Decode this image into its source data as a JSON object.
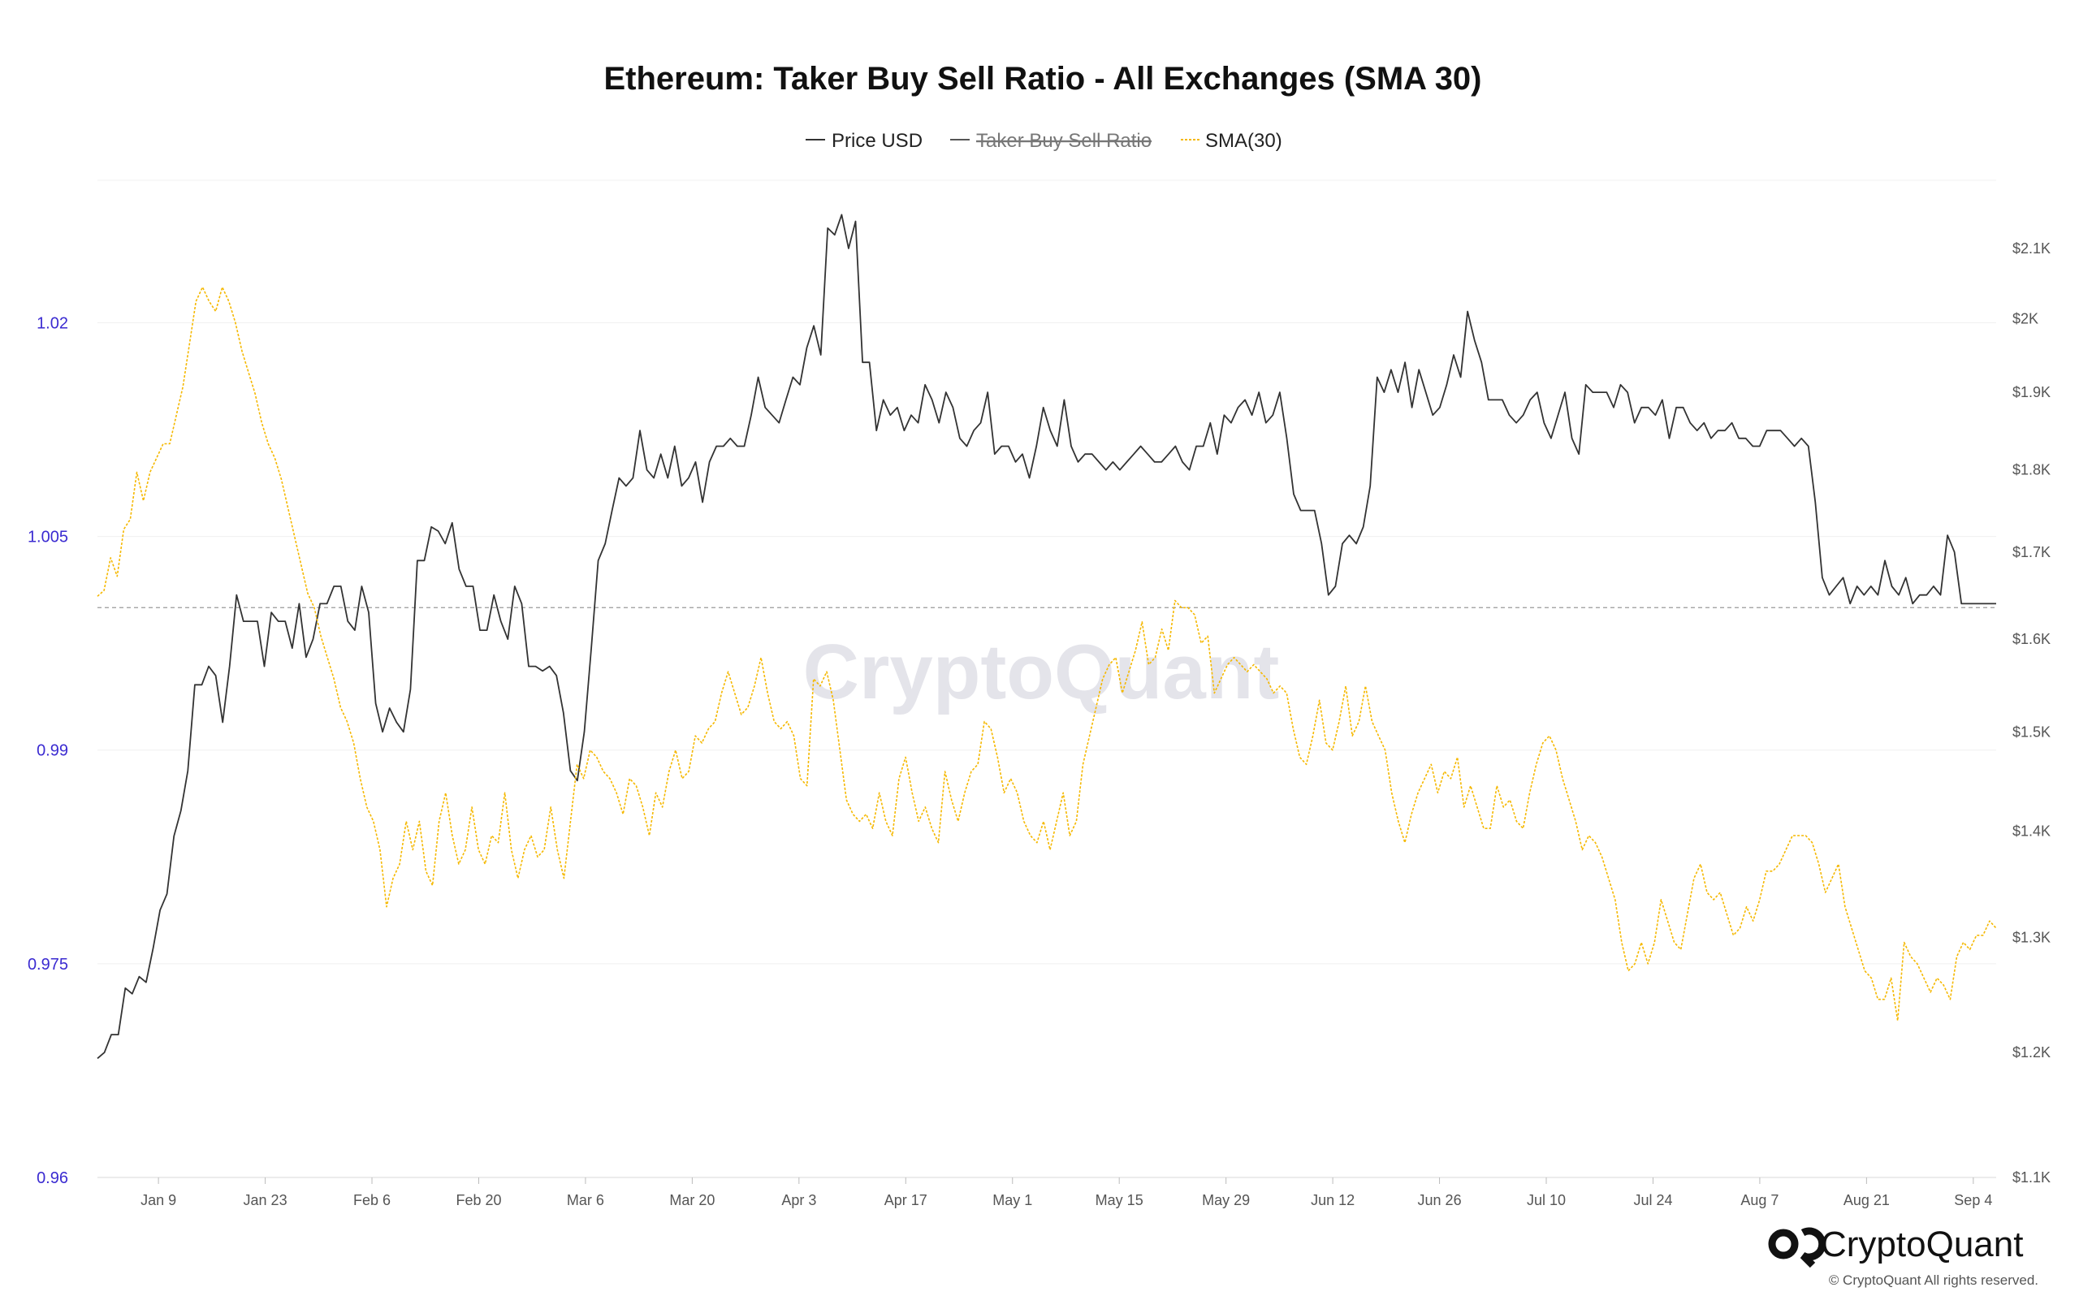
{
  "chart_data": {
    "type": "line",
    "title": "Ethereum: Taker Buy Sell Ratio - All Exchanges (SMA 30)",
    "legend": {
      "placement": "top-center",
      "items": [
        {
          "label": "Price USD",
          "color": "#333333",
          "style": "solid",
          "struck": false
        },
        {
          "label": "Taker Buy Sell Ratio",
          "color": "#555555",
          "style": "solid",
          "struck": true
        },
        {
          "label": "SMA(30)",
          "color": "#f5b800",
          "style": "dashed",
          "struck": false
        }
      ]
    },
    "x_ticks": [
      "Jan 9",
      "Jan 23",
      "Feb 6",
      "Feb 20",
      "Mar 6",
      "Mar 20",
      "Apr 3",
      "Apr 17",
      "May 1",
      "May 15",
      "May 29",
      "Jun 12",
      "Jun 26",
      "Jul 10",
      "Jul 24",
      "Aug 7",
      "Aug 21",
      "Sep 4"
    ],
    "y_left": {
      "scale": "linear",
      "ylim": [
        0.96,
        1.03
      ],
      "tick_values": [
        0.96,
        0.975,
        0.99,
        1.005,
        1.02
      ],
      "tick_labels": [
        "0.96",
        "0.975",
        "0.99",
        "1.005",
        "1.02"
      ],
      "reference_line": 1.0
    },
    "y_right": {
      "scale": "log",
      "tick_values": [
        1100,
        1200,
        1300,
        1400,
        1500,
        1600,
        1700,
        1800,
        1900,
        2000,
        2100
      ],
      "tick_labels": [
        "$1.1K",
        "$1.2K",
        "$1.3K",
        "$1.4K",
        "$1.5K",
        "$1.6K",
        "$1.7K",
        "$1.8K",
        "$1.9K",
        "$2K",
        "$2.1K"
      ]
    },
    "grid": true,
    "series": [
      {
        "name": "Price USD",
        "axis": "right",
        "color": "#333333",
        "x_start": "2023-01-01",
        "x_end": "2023-09-07",
        "values": [
          1195,
          1200,
          1215,
          1215,
          1255,
          1250,
          1265,
          1260,
          1290,
          1325,
          1340,
          1395,
          1420,
          1460,
          1550,
          1550,
          1570,
          1560,
          1510,
          1570,
          1650,
          1620,
          1620,
          1620,
          1570,
          1630,
          1620,
          1620,
          1590,
          1640,
          1580,
          1600,
          1640,
          1640,
          1660,
          1660,
          1620,
          1610,
          1660,
          1630,
          1530,
          1500,
          1525,
          1510,
          1500,
          1545,
          1690,
          1690,
          1730,
          1725,
          1710,
          1735,
          1680,
          1660,
          1660,
          1610,
          1610,
          1650,
          1620,
          1600,
          1660,
          1640,
          1570,
          1570,
          1565,
          1570,
          1560,
          1520,
          1460,
          1450,
          1500,
          1590,
          1690,
          1710,
          1750,
          1790,
          1780,
          1790,
          1850,
          1800,
          1790,
          1820,
          1790,
          1830,
          1780,
          1790,
          1810,
          1760,
          1810,
          1830,
          1830,
          1840,
          1830,
          1830,
          1870,
          1920,
          1880,
          1870,
          1860,
          1890,
          1920,
          1910,
          1960,
          1990,
          1950,
          2130,
          2120,
          2150,
          2100,
          2140,
          1940,
          1940,
          1850,
          1890,
          1870,
          1880,
          1850,
          1870,
          1860,
          1910,
          1890,
          1860,
          1900,
          1880,
          1840,
          1830,
          1850,
          1860,
          1900,
          1820,
          1830,
          1830,
          1810,
          1820,
          1790,
          1830,
          1880,
          1850,
          1830,
          1890,
          1830,
          1810,
          1820,
          1820,
          1810,
          1800,
          1810,
          1800,
          1810,
          1820,
          1830,
          1820,
          1810,
          1810,
          1820,
          1830,
          1810,
          1800,
          1830,
          1830,
          1860,
          1820,
          1870,
          1860,
          1880,
          1890,
          1870,
          1900,
          1860,
          1870,
          1900,
          1840,
          1770,
          1750,
          1750,
          1750,
          1710,
          1650,
          1660,
          1710,
          1720,
          1710,
          1730,
          1780,
          1920,
          1900,
          1930,
          1900,
          1940,
          1880,
          1930,
          1900,
          1870,
          1880,
          1910,
          1950,
          1920,
          2010,
          1970,
          1940,
          1890,
          1890,
          1890,
          1870,
          1860,
          1870,
          1890,
          1900,
          1860,
          1840,
          1870,
          1900,
          1840,
          1820,
          1910,
          1900,
          1900,
          1900,
          1880,
          1910,
          1900,
          1860,
          1880,
          1880,
          1870,
          1890,
          1840,
          1880,
          1880,
          1860,
          1850,
          1860,
          1840,
          1850,
          1850,
          1860,
          1840,
          1840,
          1830,
          1830,
          1850,
          1850,
          1850,
          1840,
          1830,
          1840,
          1830,
          1760,
          1670,
          1650,
          1660,
          1670,
          1640,
          1660,
          1650,
          1660,
          1650,
          1690,
          1660,
          1650,
          1670,
          1640,
          1650,
          1650,
          1660,
          1650,
          1720,
          1700,
          1640,
          1640,
          1640,
          1640,
          1640,
          1640
        ]
      },
      {
        "name": "SMA(30)",
        "axis": "left",
        "color": "#f5b800",
        "x_start": "2023-01-01",
        "x_end": "2023-09-07",
        "values": [
          1.0008,
          1.0012,
          1.0035,
          1.0022,
          1.0055,
          1.0062,
          1.0095,
          1.0075,
          1.0095,
          1.0105,
          1.0115,
          1.0115,
          1.0135,
          1.0155,
          1.0185,
          1.0215,
          1.0225,
          1.0215,
          1.0208,
          1.0225,
          1.0215,
          1.02,
          1.018,
          1.0165,
          1.015,
          1.013,
          1.0115,
          1.0105,
          1.009,
          1.007,
          1.005,
          1.003,
          1.001,
          1.0,
          0.998,
          0.9965,
          0.995,
          0.993,
          0.992,
          0.9905,
          0.988,
          0.986,
          0.985,
          0.983,
          0.979,
          0.981,
          0.982,
          0.985,
          0.983,
          0.985,
          0.9815,
          0.9805,
          0.985,
          0.987,
          0.984,
          0.982,
          0.983,
          0.986,
          0.983,
          0.982,
          0.984,
          0.9835,
          0.987,
          0.983,
          0.981,
          0.983,
          0.984,
          0.9825,
          0.983,
          0.986,
          0.983,
          0.981,
          0.985,
          0.989,
          0.988,
          0.99,
          0.9895,
          0.9885,
          0.988,
          0.987,
          0.9855,
          0.988,
          0.9875,
          0.986,
          0.984,
          0.987,
          0.986,
          0.9885,
          0.99,
          0.988,
          0.9885,
          0.991,
          0.9905,
          0.9915,
          0.992,
          0.994,
          0.9955,
          0.994,
          0.9925,
          0.993,
          0.9945,
          0.9965,
          0.994,
          0.992,
          0.9915,
          0.992,
          0.991,
          0.988,
          0.9875,
          0.995,
          0.9945,
          0.9955,
          0.9935,
          0.99,
          0.9865,
          0.9855,
          0.985,
          0.9855,
          0.9845,
          0.987,
          0.985,
          0.984,
          0.988,
          0.9895,
          0.987,
          0.985,
          0.986,
          0.9845,
          0.9835,
          0.9885,
          0.9865,
          0.985,
          0.987,
          0.9885,
          0.989,
          0.992,
          0.9915,
          0.9895,
          0.987,
          0.988,
          0.987,
          0.985,
          0.984,
          0.9835,
          0.985,
          0.983,
          0.985,
          0.987,
          0.984,
          0.985,
          0.989,
          0.991,
          0.993,
          0.995,
          0.996,
          0.9965,
          0.994,
          0.9955,
          0.997,
          0.999,
          0.996,
          0.9965,
          0.9985,
          0.997,
          1.0005,
          1.0,
          1.0,
          0.9995,
          0.9975,
          0.998,
          0.994,
          0.995,
          0.996,
          0.9965,
          0.996,
          0.9955,
          0.996,
          0.9955,
          0.995,
          0.994,
          0.9945,
          0.994,
          0.9915,
          0.9895,
          0.989,
          0.991,
          0.9935,
          0.9905,
          0.99,
          0.992,
          0.9945,
          0.991,
          0.992,
          0.9945,
          0.992,
          0.991,
          0.99,
          0.987,
          0.985,
          0.9835,
          0.9855,
          0.987,
          0.988,
          0.989,
          0.987,
          0.9885,
          0.988,
          0.9895,
          0.986,
          0.9875,
          0.986,
          0.9845,
          0.9845,
          0.9875,
          0.986,
          0.9865,
          0.985,
          0.9845,
          0.987,
          0.989,
          0.9905,
          0.991,
          0.99,
          0.988,
          0.9865,
          0.985,
          0.983,
          0.984,
          0.9835,
          0.9825,
          0.981,
          0.9795,
          0.9765,
          0.9745,
          0.975,
          0.9765,
          0.975,
          0.9765,
          0.9795,
          0.978,
          0.9765,
          0.976,
          0.9785,
          0.981,
          0.982,
          0.98,
          0.9795,
          0.98,
          0.9785,
          0.977,
          0.9775,
          0.979,
          0.978,
          0.9795,
          0.9815,
          0.9815,
          0.982,
          0.983,
          0.984,
          0.984,
          0.984,
          0.9835,
          0.982,
          0.98,
          0.981,
          0.982,
          0.979,
          0.9775,
          0.976,
          0.9745,
          0.974,
          0.9725,
          0.9725,
          0.974,
          0.971,
          0.9765,
          0.9755,
          0.975,
          0.974,
          0.973,
          0.974,
          0.9735,
          0.9725,
          0.9755,
          0.9765,
          0.976,
          0.977,
          0.977,
          0.978,
          0.9775
        ]
      }
    ],
    "annotations": [
      "CryptoQuant"
    ]
  },
  "branding": {
    "logo_text": "CryptoQuant",
    "copyright": "© CryptoQuant All rights reserved."
  }
}
